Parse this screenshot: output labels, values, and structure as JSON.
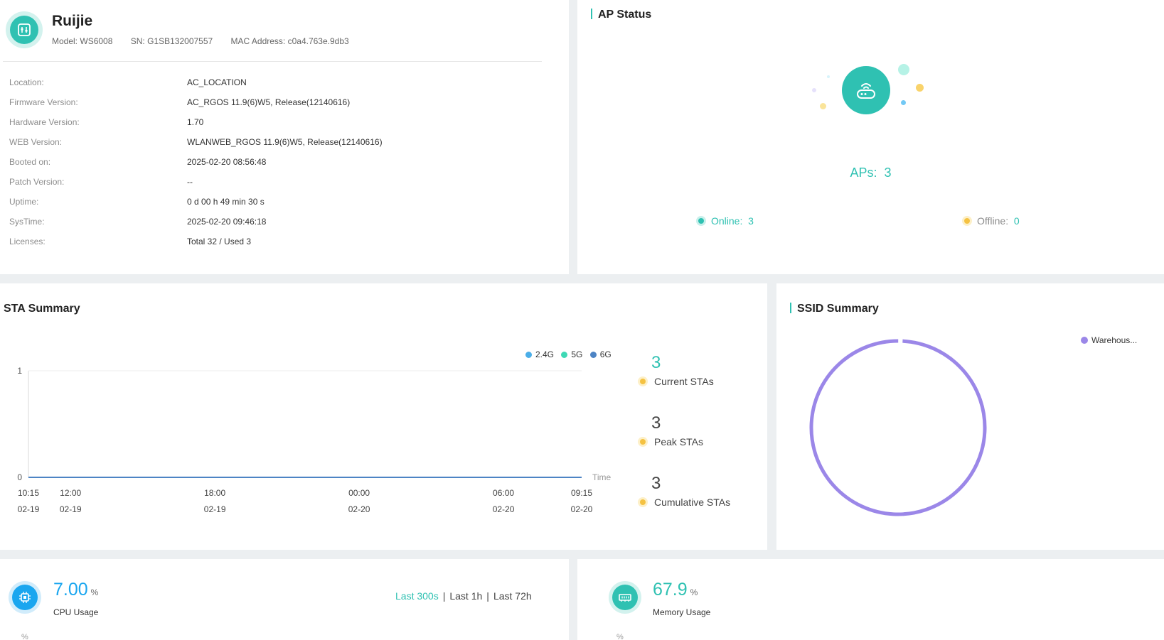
{
  "device": {
    "name": "Ruijie",
    "model_label": "Model:",
    "model": "WS6008",
    "sn_label": "SN:",
    "sn": "G1SB132007557",
    "mac_label": "MAC Address:",
    "mac": "c0a4.763e.9db3",
    "info": [
      {
        "label": "Location:",
        "value": "AC_LOCATION"
      },
      {
        "label": "Firmware Version:",
        "value": "AC_RGOS 11.9(6)W5, Release(12140616)"
      },
      {
        "label": "Hardware Version:",
        "value": "1.70"
      },
      {
        "label": "WEB Version:",
        "value": "WLANWEB_RGOS 11.9(6)W5, Release(12140616)"
      },
      {
        "label": "Booted on:",
        "value": "2025-02-20 08:56:48"
      },
      {
        "label": "Patch Version:",
        "value": "--"
      },
      {
        "label": "Uptime:",
        "value": "0 d 00 h 49 min 30 s"
      },
      {
        "label": "SysTime:",
        "value": "2025-02-20 09:46:18"
      },
      {
        "label": "Licenses:",
        "value": "Total 32 / Used 3"
      }
    ]
  },
  "ap_status": {
    "title": "AP Status",
    "icon": "router-icon",
    "aps_label": "APs:",
    "aps_count": "3",
    "online_label": "Online:",
    "online_count": "3",
    "offline_label": "Offline:",
    "offline_count": "0"
  },
  "sta_summary": {
    "title": "STA Summary",
    "current_value": "3",
    "current_label": "Current STAs",
    "peak_value": "3",
    "peak_label": "Peak STAs",
    "cumulative_value": "3",
    "cumulative_label": "Cumulative STAs"
  },
  "chart_data": {
    "type": "line",
    "title": "",
    "xlabel": "Time",
    "ylabel": "",
    "ylim": [
      0,
      1
    ],
    "yticks": [
      "0",
      "1"
    ],
    "x_ticks": [
      {
        "time": "10:15",
        "date": "02-19"
      },
      {
        "time": "12:00",
        "date": "02-19"
      },
      {
        "time": "18:00",
        "date": "02-19"
      },
      {
        "time": "00:00",
        "date": "02-20"
      },
      {
        "time": "06:00",
        "date": "02-20"
      },
      {
        "time": "09:15",
        "date": "02-20"
      }
    ],
    "x_tick_hours": [
      0,
      1.75,
      7.75,
      13.75,
      19.75,
      23
    ],
    "series": [
      {
        "name": "2.4G",
        "color": "#4aaee8",
        "values": [
          0,
          0,
          0,
          0,
          0,
          0
        ]
      },
      {
        "name": "5G",
        "color": "#3ed9b5",
        "values": [
          0,
          0,
          0,
          0,
          0,
          0
        ]
      },
      {
        "name": "6G",
        "color": "#4d84c4",
        "values": [
          0,
          0,
          0,
          0,
          0,
          0
        ]
      }
    ],
    "grid": false,
    "legend": "top-right"
  },
  "ssid_summary": {
    "title": "SSID Summary",
    "legend_item": "Warehous...",
    "color": "#9b87e8"
  },
  "cpu": {
    "value": "7.00",
    "unit": "%",
    "label": "CPU Usage",
    "range_active": "Last 300s",
    "range_1h": "Last 1h",
    "range_72h": "Last 72h",
    "axis_unit": "%",
    "color": "#1aa6ef"
  },
  "memory": {
    "value": "67.9",
    "unit": "%",
    "label": "Memory Usage",
    "axis_unit": "%",
    "color": "#2fc1b2"
  }
}
